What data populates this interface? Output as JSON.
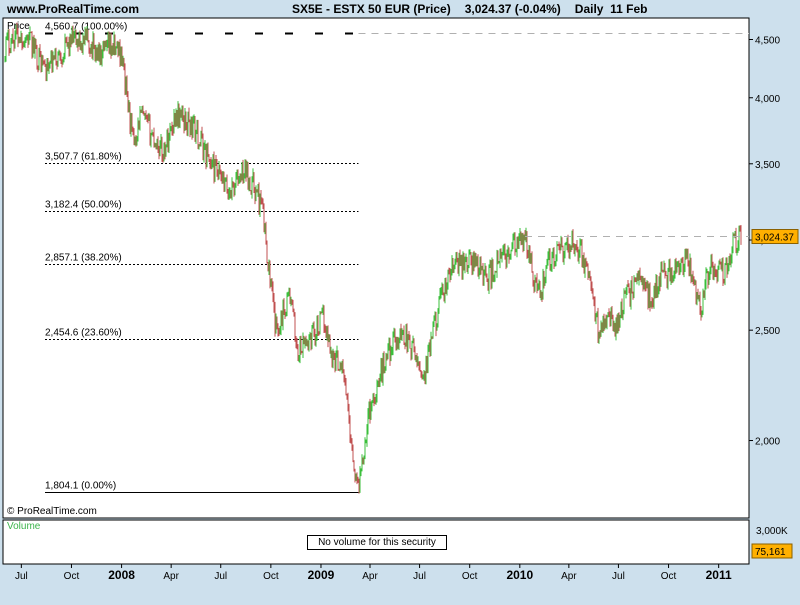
{
  "header": {
    "site": "www.ProRealTime.com",
    "symbol": "SX5E - ESTX 50 EUR (Price)",
    "last": "3,024.37 (-0.04%)",
    "period": "Daily  11 Feb"
  },
  "chart_data": {
    "type": "line",
    "panel_label": "Price",
    "copyright": "© ProRealTime.com",
    "y_scale": "log",
    "ylim": [
      1710,
      4700
    ],
    "y_ticks": [
      {
        "v": 4500,
        "label": "4,500"
      },
      {
        "v": 4000,
        "label": "4,000"
      },
      {
        "v": 3500,
        "label": "3,500"
      },
      {
        "v": 3000,
        "label": "3,000"
      },
      {
        "v": 2500,
        "label": "2,500"
      },
      {
        "v": 2000,
        "label": "2,000"
      }
    ],
    "x_range": [
      "2007-06-01",
      "2011-02-11"
    ],
    "x_ticks": [
      {
        "d": "2007-07-01",
        "label": "Jul",
        "bold": false
      },
      {
        "d": "2007-10-01",
        "label": "Oct",
        "bold": false
      },
      {
        "d": "2008-01-01",
        "label": "2008",
        "bold": true
      },
      {
        "d": "2008-04-01",
        "label": "Apr",
        "bold": false
      },
      {
        "d": "2008-07-01",
        "label": "Jul",
        "bold": false
      },
      {
        "d": "2008-10-01",
        "label": "Oct",
        "bold": false
      },
      {
        "d": "2009-01-01",
        "label": "2009",
        "bold": true
      },
      {
        "d": "2009-04-01",
        "label": "Apr",
        "bold": false
      },
      {
        "d": "2009-07-01",
        "label": "Jul",
        "bold": false
      },
      {
        "d": "2009-10-01",
        "label": "Oct",
        "bold": false
      },
      {
        "d": "2010-01-01",
        "label": "2010",
        "bold": true
      },
      {
        "d": "2010-04-01",
        "label": "Apr",
        "bold": false
      },
      {
        "d": "2010-07-01",
        "label": "Jul",
        "bold": false
      },
      {
        "d": "2010-10-01",
        "label": "Oct",
        "bold": false
      },
      {
        "d": "2011-01-01",
        "label": "2011",
        "bold": true
      }
    ],
    "series": [
      {
        "x": [
          "2007-06-01",
          "2007-06-20",
          "2007-07-13",
          "2007-08-16",
          "2007-09-10",
          "2007-10-01",
          "2007-11-01",
          "2007-11-26",
          "2007-12-10",
          "2007-12-31",
          "2008-01-22",
          "2008-02-05",
          "2008-03-17",
          "2008-04-10",
          "2008-05-12",
          "2008-06-16",
          "2008-07-15",
          "2008-08-15",
          "2008-09-01",
          "2008-09-15",
          "2008-10-10",
          "2008-10-24",
          "2008-11-04",
          "2008-11-20",
          "2008-12-08",
          "2009-01-06",
          "2009-01-23",
          "2009-02-09",
          "2009-03-09",
          "2009-03-30",
          "2009-05-04",
          "2009-06-01",
          "2009-07-10",
          "2009-08-03",
          "2009-09-01",
          "2009-10-02",
          "2009-10-20",
          "2009-11-02",
          "2009-12-01",
          "2010-01-11",
          "2010-02-05",
          "2010-02-25",
          "2010-04-15",
          "2010-05-06",
          "2010-05-25",
          "2010-06-09",
          "2010-06-25",
          "2010-07-09",
          "2010-08-10",
          "2010-08-31",
          "2010-09-15",
          "2010-10-15",
          "2010-11-05",
          "2010-11-30",
          "2010-12-15",
          "2011-01-10",
          "2011-01-27",
          "2011-02-11"
        ],
        "y": [
          4450,
          4540,
          4510,
          4230,
          4370,
          4480,
          4480,
          4330,
          4430,
          4400,
          3650,
          3860,
          3580,
          3880,
          3770,
          3480,
          3300,
          3460,
          3330,
          3200,
          2500,
          2600,
          2700,
          2380,
          2450,
          2560,
          2360,
          2340,
          1804,
          2120,
          2400,
          2490,
          2280,
          2600,
          2850,
          2880,
          2840,
          2770,
          2900,
          3000,
          2680,
          2880,
          2990,
          2800,
          2500,
          2600,
          2520,
          2640,
          2790,
          2650,
          2800,
          2810,
          2870,
          2620,
          2840,
          2810,
          2980,
          3024
        ]
      }
    ],
    "fib_levels": [
      {
        "value": 4560.7,
        "label": "4,560.7 (100.00%)"
      },
      {
        "value": 3507.7,
        "label": "3,507.7 (61.80%)"
      },
      {
        "value": 3182.4,
        "label": "3,182.4 (50.00%)"
      },
      {
        "value": 2857.1,
        "label": "2,857.1 (38.20%)"
      },
      {
        "value": 2454.6,
        "label": "2,454.6 (23.60%)"
      },
      {
        "value": 1804.1,
        "label": "1,804.1 (0.00%)"
      }
    ],
    "fib_range": [
      "2007-06-01",
      "2009-03-09"
    ],
    "last_price": {
      "value": 3024.37,
      "label": "3,024.37"
    },
    "volume": {
      "title": "Volume",
      "message": "No volume for this security",
      "axis_label": "3,000K",
      "value_label": "75,161"
    },
    "colors": {
      "up": "#3bbf3b",
      "down": "#c05050",
      "badge": "#ffb000",
      "volume_title": "#3cb44b"
    }
  }
}
